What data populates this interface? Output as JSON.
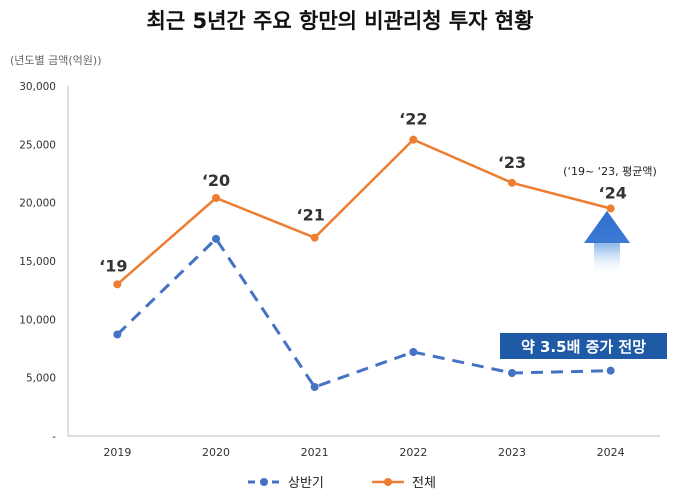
{
  "chart_data": {
    "type": "line",
    "title": "최근 5년간 주요 항만의 비관리청 투자 현황",
    "unit_label": "(년도별 금액(억원))",
    "categories": [
      "2019",
      "2020",
      "2021",
      "2022",
      "2023",
      "2024"
    ],
    "point_labels": [
      "‘19",
      "‘20",
      "‘21",
      "‘22",
      "‘23",
      "‘24"
    ],
    "ylim": [
      0,
      30000
    ],
    "y_ticks": [
      "30,000",
      "25,000",
      "20,000",
      "15,000",
      "10,000",
      "5,000",
      "-"
    ],
    "grid": false,
    "legend_position": "bottom",
    "series": [
      {
        "name": "상반기",
        "color": "#4472C4",
        "style": "dashed",
        "values": [
          8700,
          16900,
          4200,
          7200,
          5400,
          5600
        ]
      },
      {
        "name": "전체",
        "color": "#ED7D31",
        "style": "solid",
        "values": [
          13000,
          20400,
          17000,
          25400,
          21700,
          19500
        ]
      }
    ],
    "annotations": {
      "note": "(‘19~ ‘23, 평균액)",
      "callout": "약 3.5배 증가 전망"
    }
  }
}
